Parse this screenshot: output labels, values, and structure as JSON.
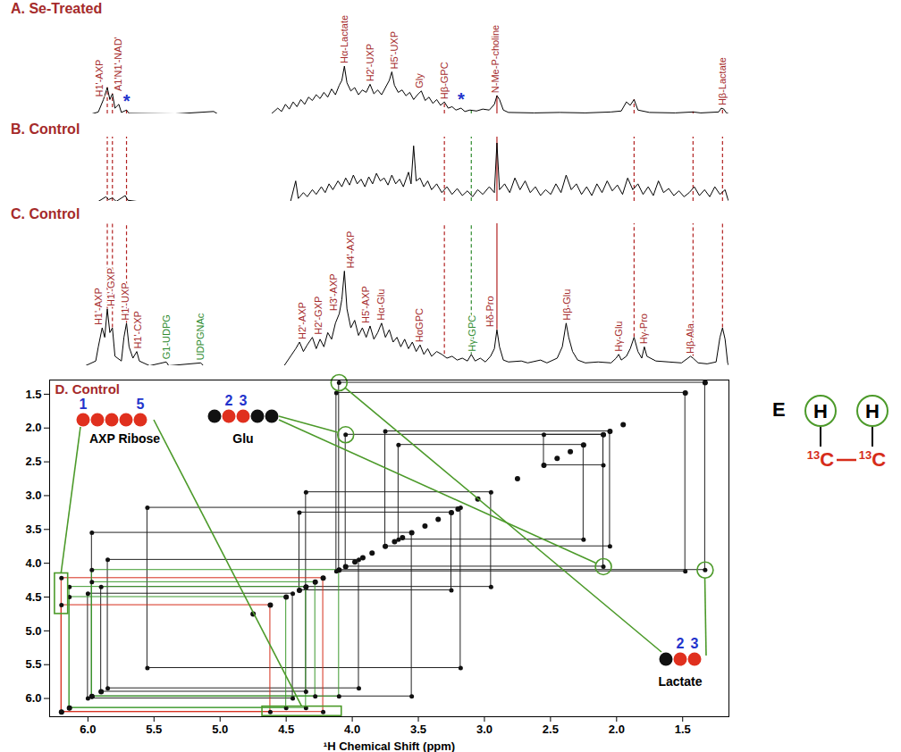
{
  "guide_lines": [
    {
      "x": 6.13,
      "color": "#b22222",
      "line_style": "dashed"
    },
    {
      "x": 6.09,
      "color": "#b22222",
      "line_style": "dashed"
    },
    {
      "x": 5.98,
      "color": "#b22222",
      "line_style": "dashed"
    },
    {
      "x": 3.5,
      "color": "#b22222",
      "line_style": "dashed"
    },
    {
      "x": 3.29,
      "color": "#2e8b2e",
      "line_style": "dashed"
    },
    {
      "x": 3.09,
      "color": "#b22222",
      "line_style": "solid"
    },
    {
      "x": 2.02,
      "color": "#b22222",
      "line_style": "dashed"
    },
    {
      "x": 1.56,
      "color": "#b22222",
      "line_style": "dashed"
    },
    {
      "x": 1.33,
      "color": "#b22222",
      "line_style": "dashed"
    }
  ],
  "chart_data": [
    {
      "type": "spectrum",
      "title": "A. Se-Treated",
      "xlim": [
        6.58,
        1.28
      ],
      "ylim": [
        0,
        200
      ],
      "tick_labels": false,
      "color": "#000000",
      "x": [
        6.55,
        6.25,
        6.2,
        6.16,
        6.13,
        6.11,
        6.09,
        6.07,
        6.04,
        6.02,
        5.98,
        5.96,
        5.6,
        5.3,
        5.27,
        4.85,
        4.8,
        4.77,
        4.74,
        4.71,
        4.68,
        4.65,
        4.62,
        4.59,
        4.56,
        4.53,
        4.5,
        4.47,
        4.44,
        4.41,
        4.38,
        4.35,
        4.32,
        4.3,
        4.28,
        4.26,
        4.23,
        4.2,
        4.17,
        4.14,
        4.11,
        4.08,
        4.05,
        4.02,
        3.99,
        3.96,
        3.93,
        3.91,
        3.89,
        3.86,
        3.83,
        3.8,
        3.77,
        3.74,
        3.71,
        3.68,
        3.65,
        3.62,
        3.59,
        3.56,
        3.53,
        3.5,
        3.47,
        3.44,
        3.41,
        3.37,
        3.34,
        3.3,
        3.25,
        3.2,
        3.15,
        3.11,
        3.09,
        3.07,
        3.04,
        3.0,
        2.8,
        2.6,
        2.4,
        2.2,
        2.12,
        2.08,
        2.05,
        2.02,
        1.99,
        1.9,
        1.7,
        1.56,
        1.5,
        1.36,
        1.34,
        1.32,
        1.3,
        1.28
      ],
      "values": [
        0,
        0,
        4,
        30,
        55,
        30,
        42,
        12,
        20,
        3,
        8,
        1,
        0,
        5,
        0,
        0,
        12,
        5,
        20,
        10,
        25,
        15,
        30,
        20,
        35,
        28,
        40,
        32,
        45,
        35,
        52,
        40,
        60,
        70,
        100,
        65,
        48,
        55,
        40,
        50,
        45,
        62,
        42,
        50,
        40,
        55,
        70,
        88,
        60,
        45,
        50,
        38,
        45,
        30,
        40,
        48,
        28,
        35,
        22,
        30,
        18,
        25,
        12,
        15,
        8,
        12,
        5,
        8,
        6,
        10,
        8,
        20,
        38,
        30,
        8,
        3,
        2,
        3,
        2,
        4,
        6,
        25,
        18,
        30,
        8,
        3,
        2,
        4,
        2,
        4,
        12,
        10,
        2,
        0
      ],
      "annotations": [
        {
          "text": "H1'-AXP",
          "x": 6.19,
          "color": "#a52a2a"
        },
        {
          "text": "A1'N1'-NAD'",
          "x": 6.04,
          "color": "#a52a2a"
        },
        {
          "text": "*",
          "x": 5.98,
          "color": "#2233cc"
        },
        {
          "text": "Hα-Lactate",
          "x": 4.28,
          "color": "#a52a2a"
        },
        {
          "text": "H2'-UXP",
          "x": 4.08,
          "color": "#a52a2a"
        },
        {
          "text": "H5'-UXP",
          "x": 3.89,
          "color": "#a52a2a"
        },
        {
          "text": "Gly",
          "x": 3.69,
          "color": "#a52a2a"
        },
        {
          "text": "Hβ-GPC",
          "x": 3.5,
          "color": "#a52a2a"
        },
        {
          "text": "*",
          "x": 3.37,
          "color": "#2233cc"
        },
        {
          "text": "N-Me-P-choline",
          "x": 3.1,
          "color": "#a52a2a"
        },
        {
          "text": "Hβ-Lactate",
          "x": 1.33,
          "color": "#a52a2a"
        }
      ]
    },
    {
      "type": "spectrum",
      "title": "B. Control",
      "xlim": [
        6.58,
        1.28
      ],
      "ylim": [
        0,
        110
      ],
      "tick_labels": false,
      "color": "#000000",
      "x": [
        6.55,
        6.2,
        6.14,
        6.12,
        6.09,
        6.06,
        5.99,
        5.97,
        5.9,
        4.7,
        4.66,
        4.64,
        4.6,
        4.57,
        4.53,
        4.5,
        4.46,
        4.43,
        4.4,
        4.37,
        4.33,
        4.3,
        4.27,
        4.24,
        4.21,
        4.18,
        4.15,
        4.12,
        4.09,
        4.06,
        4.03,
        4.0,
        3.97,
        3.94,
        3.91,
        3.88,
        3.85,
        3.82,
        3.78,
        3.76,
        3.74,
        3.72,
        3.69,
        3.66,
        3.63,
        3.6,
        3.56,
        3.52,
        3.48,
        3.44,
        3.4,
        3.36,
        3.32,
        3.28,
        3.24,
        3.2,
        3.15,
        3.11,
        3.09,
        3.07,
        3.03,
        2.99,
        2.95,
        2.91,
        2.87,
        2.83,
        2.79,
        2.75,
        2.71,
        2.67,
        2.63,
        2.59,
        2.55,
        2.51,
        2.47,
        2.43,
        2.39,
        2.35,
        2.31,
        2.27,
        2.23,
        2.19,
        2.15,
        2.11,
        2.07,
        2.03,
        1.99,
        1.95,
        1.91,
        1.87,
        1.83,
        1.79,
        1.75,
        1.71,
        1.67,
        1.63,
        1.59,
        1.55,
        1.51,
        1.47,
        1.43,
        1.39,
        1.35,
        1.31,
        1.29,
        1.28
      ],
      "values": [
        0,
        0,
        8,
        3,
        6,
        0,
        10,
        2,
        0,
        0,
        35,
        5,
        15,
        8,
        20,
        12,
        25,
        15,
        30,
        20,
        35,
        25,
        40,
        28,
        45,
        30,
        38,
        25,
        42,
        30,
        48,
        35,
        40,
        28,
        45,
        30,
        38,
        25,
        50,
        30,
        95,
        35,
        40,
        25,
        35,
        20,
        30,
        15,
        25,
        12,
        22,
        10,
        18,
        8,
        20,
        12,
        25,
        15,
        100,
        20,
        30,
        15,
        40,
        20,
        35,
        15,
        25,
        10,
        20,
        12,
        30,
        15,
        45,
        20,
        30,
        12,
        25,
        10,
        30,
        15,
        35,
        18,
        28,
        12,
        40,
        20,
        30,
        12,
        25,
        10,
        35,
        15,
        22,
        10,
        18,
        8,
        15,
        25,
        10,
        20,
        8,
        25,
        12,
        20,
        5,
        0
      ]
    },
    {
      "type": "spectrum",
      "title": "C. Control",
      "xlim": [
        6.58,
        1.28
      ],
      "ylim": [
        0,
        150
      ],
      "tick_labels": false,
      "color": "#000000",
      "x": [
        6.55,
        6.3,
        6.22,
        6.2,
        6.17,
        6.15,
        6.13,
        6.11,
        6.09,
        6.07,
        6.02,
        6.0,
        5.98,
        5.96,
        5.93,
        5.9,
        5.88,
        5.8,
        5.67,
        5.65,
        5.4,
        5.38,
        4.75,
        4.7,
        4.66,
        4.63,
        4.6,
        4.57,
        4.53,
        4.5,
        4.47,
        4.44,
        4.41,
        4.38,
        4.35,
        4.32,
        4.3,
        4.28,
        4.26,
        4.23,
        4.2,
        4.17,
        4.14,
        4.11,
        4.08,
        4.05,
        4.02,
        3.99,
        3.96,
        3.93,
        3.9,
        3.87,
        3.84,
        3.81,
        3.78,
        3.75,
        3.72,
        3.69,
        3.66,
        3.63,
        3.6,
        3.56,
        3.52,
        3.48,
        3.44,
        3.4,
        3.36,
        3.32,
        3.29,
        3.26,
        3.22,
        3.18,
        3.14,
        3.11,
        3.09,
        3.07,
        3.04,
        3.0,
        2.9,
        2.85,
        2.75,
        2.7,
        2.62,
        2.58,
        2.55,
        2.53,
        2.5,
        2.46,
        2.4,
        2.3,
        2.2,
        2.16,
        2.14,
        2.12,
        2.08,
        2.05,
        2.02,
        1.99,
        1.96,
        1.94,
        1.92,
        1.85,
        1.75,
        1.65,
        1.58,
        1.56,
        1.52,
        1.45,
        1.38,
        1.35,
        1.33,
        1.31,
        1.29,
        1.28
      ],
      "values": [
        0,
        0,
        5,
        20,
        40,
        30,
        60,
        35,
        40,
        10,
        5,
        30,
        45,
        20,
        8,
        15,
        5,
        0,
        4,
        0,
        3,
        0,
        0,
        10,
        18,
        25,
        15,
        22,
        30,
        18,
        28,
        20,
        35,
        28,
        45,
        55,
        70,
        100,
        60,
        40,
        48,
        32,
        40,
        30,
        42,
        28,
        35,
        45,
        30,
        38,
        25,
        30,
        20,
        28,
        18,
        25,
        15,
        22,
        12,
        18,
        10,
        15,
        12,
        8,
        10,
        6,
        8,
        5,
        12,
        5,
        8,
        4,
        10,
        18,
        38,
        20,
        6,
        4,
        5,
        3,
        6,
        3,
        8,
        20,
        45,
        30,
        15,
        6,
        3,
        4,
        3,
        8,
        12,
        6,
        10,
        18,
        30,
        15,
        8,
        20,
        10,
        5,
        4,
        3,
        10,
        8,
        3,
        2,
        4,
        30,
        40,
        28,
        3,
        0
      ],
      "annotations": [
        {
          "text": "H1'-AXP",
          "x": 6.2,
          "color": "#a52a2a"
        },
        {
          "text": "H1'-GXP",
          "x": 6.1,
          "color": "#a52a2a"
        },
        {
          "text": "H1'-UXP",
          "x": 5.99,
          "color": "#a52a2a"
        },
        {
          "text": "H1'-CXP",
          "x": 5.89,
          "color": "#a52a2a"
        },
        {
          "text": "G1-UDPG",
          "x": 5.67,
          "color": "#2e8b2e"
        },
        {
          "text": "UDPGNAc",
          "x": 5.4,
          "color": "#2e8b2e"
        },
        {
          "text": "H2'-AXP",
          "x": 4.61,
          "color": "#a52a2a"
        },
        {
          "text": "H2'-GXP",
          "x": 4.48,
          "color": "#a52a2a"
        },
        {
          "text": "H3'-AXP",
          "x": 4.36,
          "color": "#a52a2a"
        },
        {
          "text": "H4'-AXP",
          "x": 4.23,
          "color": "#a52a2a"
        },
        {
          "text": "H5'-AXP",
          "x": 4.11,
          "color": "#a52a2a"
        },
        {
          "text": "Hα-Glu",
          "x": 3.99,
          "color": "#a52a2a"
        },
        {
          "text": "HαGPC",
          "x": 3.69,
          "color": "#a52a2a"
        },
        {
          "text": "Hγ-GPC",
          "x": 3.28,
          "color": "#2e8b2e"
        },
        {
          "text": "Hδ-Pro",
          "x": 3.14,
          "color": "#a52a2a"
        },
        {
          "text": "Hβ-Glu",
          "x": 2.54,
          "color": "#a52a2a"
        },
        {
          "text": "Hγ-Glu",
          "x": 2.14,
          "color": "#a52a2a"
        },
        {
          "text": "Hγ-Pro",
          "x": 1.94,
          "color": "#a52a2a"
        },
        {
          "text": "Hβ-Ala",
          "x": 1.58,
          "color": "#a52a2a"
        }
      ]
    },
    {
      "type": "tocsy",
      "title": "D. Control",
      "x_label": "¹H Chemical Shift (ppm)",
      "xlim": [
        6.29,
        1.15
      ],
      "ylim": [
        1.29,
        6.27
      ],
      "xticks": [
        {
          "value": 6,
          "label": "6.0"
        },
        5.5,
        {
          "value": 5,
          "label": "5.0"
        },
        4.5,
        {
          "value": 4,
          "label": "4.0"
        },
        3.5,
        {
          "value": 3,
          "label": "3.0"
        },
        2.5,
        {
          "value": 2,
          "label": "2.0"
        },
        1.5
      ],
      "yticks": [
        1.5,
        {
          "value": 2,
          "label": "2.0"
        },
        2.5,
        {
          "value": 3,
          "label": "3.0"
        },
        3.5,
        {
          "value": 4,
          "label": "4.0"
        },
        4.5,
        {
          "value": 5,
          "label": "5.0"
        },
        5.5,
        {
          "value": 6,
          "label": "6.0"
        }
      ],
      "diagonal": [
        6.2,
        6.14,
        5.97,
        5.9,
        4.75,
        4.62,
        4.5,
        4.4,
        4.35,
        4.28,
        4.22,
        4.1,
        4.05,
        3.98,
        3.92,
        3.85,
        3.75,
        3.68,
        3.62,
        3.55,
        3.45,
        3.35,
        3.25,
        3.2,
        3.05,
        2.75,
        2.55,
        2.45,
        2.35,
        2.25,
        2.1,
        2.05,
        1.95,
        1.48,
        1.33
      ],
      "spin_pairs": [
        {
          "color": "#222222",
          "pairs": [
            [
              4.1,
              1.33
            ],
            [
              4.12,
              1.48
            ],
            [
              4.05,
              2.1
            ],
            [
              2.55,
              2.1
            ],
            [
              3.75,
              2.05
            ],
            [
              3.65,
              2.25
            ],
            [
              4.4,
              3.25
            ],
            [
              4.35,
              2.95
            ],
            [
              5.97,
              3.55
            ],
            [
              5.9,
              4.35
            ],
            [
              5.55,
              3.18
            ],
            [
              5.85,
              3.95
            ],
            [
              6.0,
              4.45
            ]
          ]
        },
        {
          "color": "#d62c1a",
          "pairs": [
            [
              6.2,
              4.22
            ],
            [
              6.2,
              4.62
            ]
          ]
        },
        {
          "color": "#3d9a2e",
          "pairs": [
            [
              6.14,
              4.35
            ],
            [
              6.14,
              4.5
            ],
            [
              5.97,
              4.28
            ],
            [
              5.97,
              4.1
            ]
          ]
        }
      ],
      "molecules": [
        {
          "name": "AXP Ribose",
          "carbons": [
            "#e0301e",
            "#e0301e",
            "#e0301e",
            "#e0301e",
            "#e0301e"
          ],
          "numbered": [
            1,
            5
          ],
          "boxes": [
            {
              "x": [
                6.25,
                6.15
              ],
              "y": [
                4.15,
                4.75
              ]
            },
            {
              "x": [
                4.68,
                4.08
              ],
              "y": [
                6.12,
                6.26
              ]
            }
          ]
        },
        {
          "name": "Glu",
          "carbons": [
            "#111111",
            "#e0301e",
            "#e0301e",
            "#111111",
            "#111111"
          ],
          "numbered": [
            2,
            3
          ],
          "circles": [
            [
              4.05,
              2.1
            ],
            [
              2.1,
              4.05
            ]
          ]
        },
        {
          "name": "Lactate",
          "carbons": [
            "#111111",
            "#e0301e",
            "#e0301e"
          ],
          "numbered": [
            2,
            3
          ],
          "circles": [
            [
              4.1,
              1.33
            ],
            [
              1.33,
              4.1
            ]
          ]
        }
      ]
    }
  ],
  "diagram": {
    "label": "E",
    "hydrogens": [
      "H",
      "H"
    ],
    "carbons": [
      {
        "mass": "13",
        "symbol": "C"
      },
      {
        "mass": "13",
        "symbol": "C"
      }
    ]
  }
}
